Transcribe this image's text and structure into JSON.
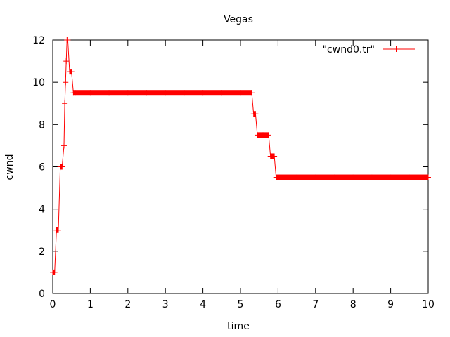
{
  "chart_data": {
    "type": "line",
    "title": "Vegas",
    "xlabel": "time",
    "ylabel": "cwnd",
    "xlim": [
      0,
      10
    ],
    "ylim": [
      0,
      12
    ],
    "xticks": [
      0,
      1,
      2,
      3,
      4,
      5,
      6,
      7,
      8,
      9,
      10
    ],
    "yticks": [
      0,
      2,
      4,
      6,
      8,
      10,
      12
    ],
    "x_tick_labels": [
      "0",
      "1",
      "2",
      "3",
      "4",
      "5",
      "6",
      "7",
      "8",
      "9",
      "10"
    ],
    "y_tick_labels": [
      "0",
      "2",
      "4",
      "6",
      "8",
      "10",
      "12"
    ],
    "grid": false,
    "legend_position": "top-right",
    "series": [
      {
        "name": "\"cwnd0.tr\"",
        "color": "#ff0000",
        "x": [
          0.0,
          0.05,
          0.1,
          0.15,
          0.2,
          0.25,
          0.3,
          0.32,
          0.34,
          0.36,
          0.38,
          0.4,
          0.45,
          0.5,
          0.55,
          0.6,
          1.0,
          1.5,
          2.0,
          2.5,
          3.0,
          3.5,
          4.0,
          4.5,
          5.0,
          5.3,
          5.35,
          5.4,
          5.45,
          5.6,
          5.75,
          5.8,
          5.9,
          5.95,
          6.5,
          7.0,
          7.5,
          8.0,
          8.5,
          9.0,
          9.5,
          10.0
        ],
        "y": [
          1,
          1,
          3,
          3,
          6,
          6,
          7,
          9,
          10,
          11,
          12,
          12,
          10.5,
          10.5,
          9.5,
          9.5,
          9.5,
          9.5,
          9.5,
          9.5,
          9.5,
          9.5,
          9.5,
          9.5,
          9.5,
          9.5,
          8.5,
          8.5,
          7.5,
          7.5,
          7.5,
          6.5,
          6.5,
          5.5,
          5.5,
          5.5,
          5.5,
          5.5,
          5.5,
          5.5,
          5.5,
          5.5
        ]
      }
    ]
  }
}
